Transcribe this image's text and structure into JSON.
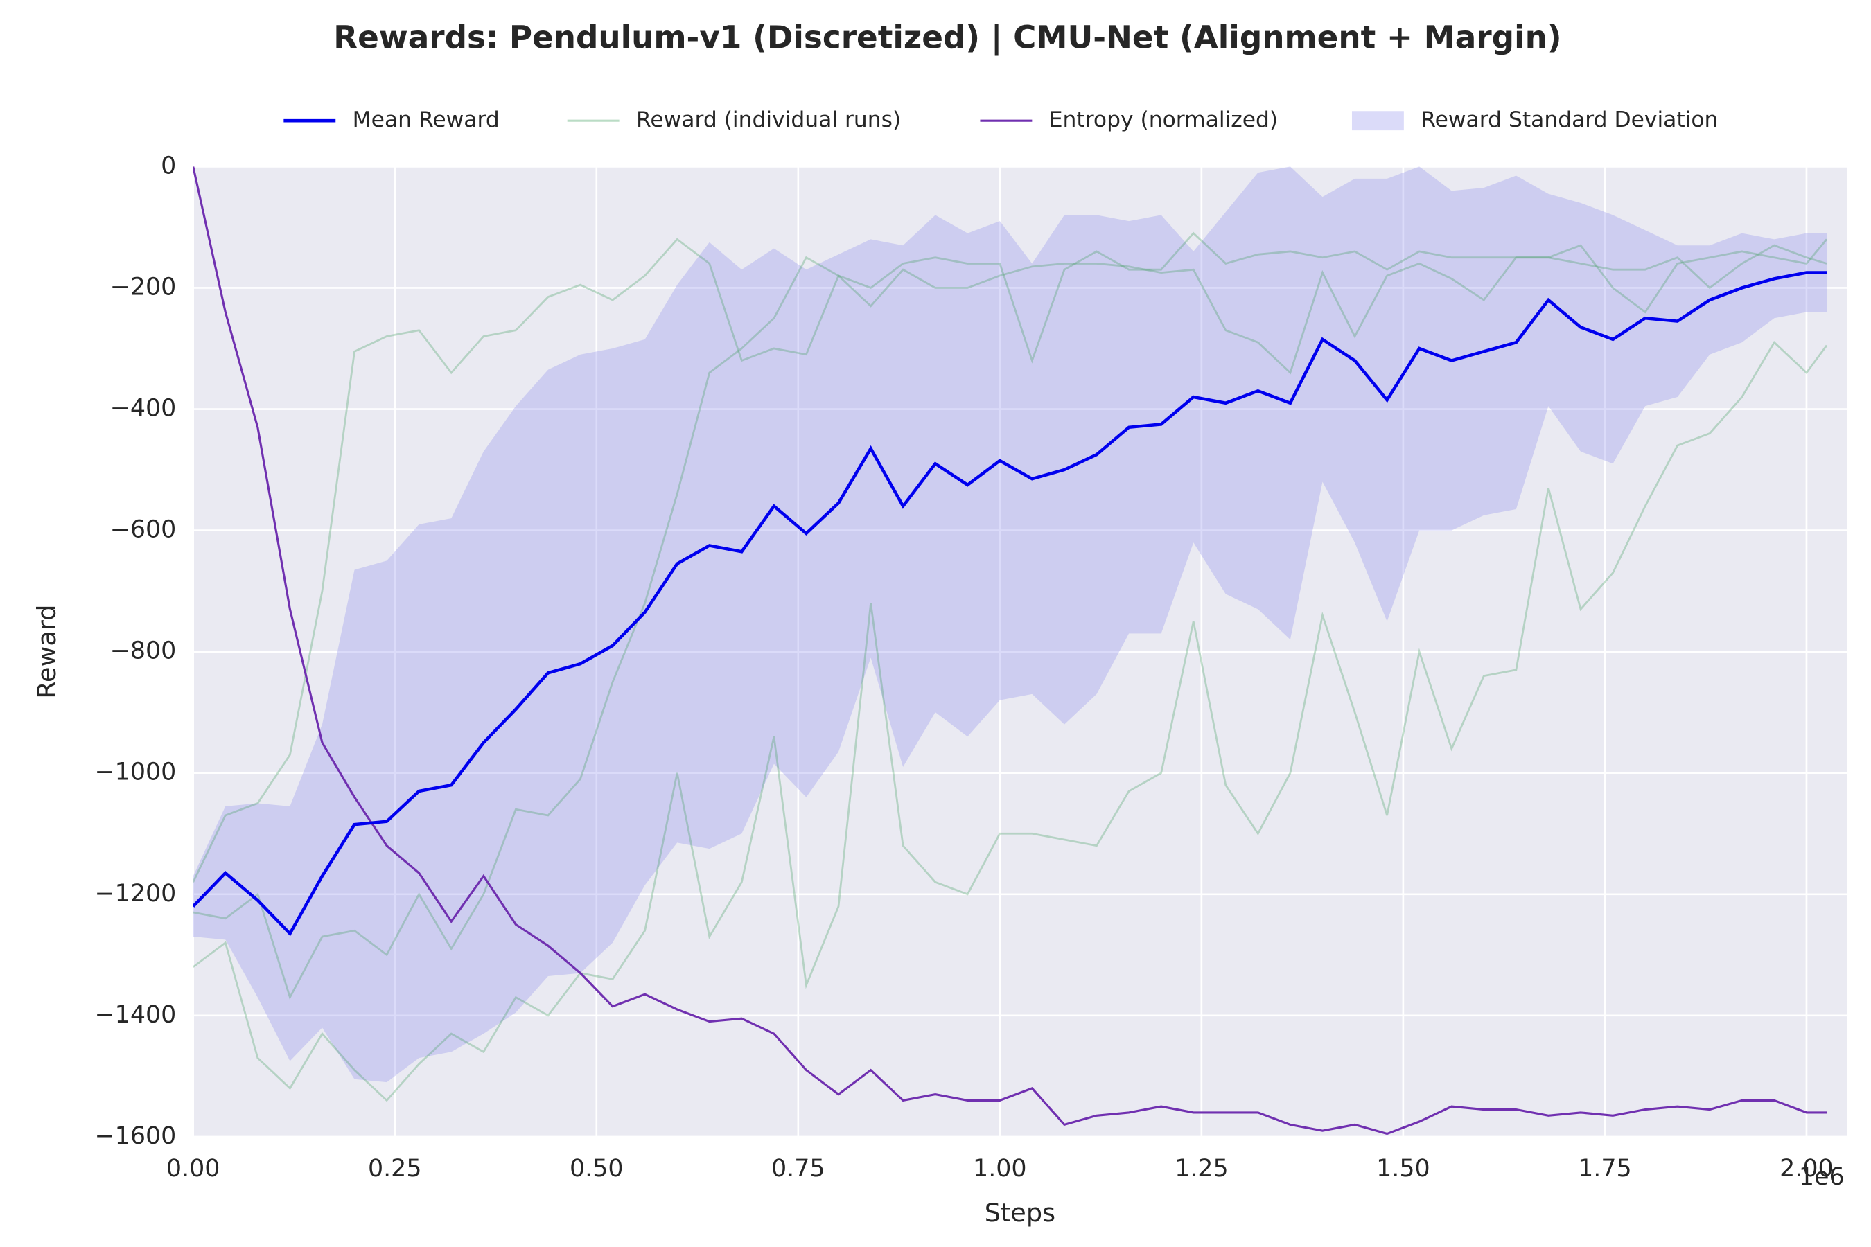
{
  "chart_data": {
    "type": "line",
    "title": "Rewards: Pendulum-v1 (Discretized) | CMU-Net (Alignment + Margin)",
    "xlabel": "Steps",
    "ylabel": "Reward",
    "x_offset_label": "1e6",
    "xlim": [
      0,
      2050000
    ],
    "ylim": [
      -1600,
      0
    ],
    "xticks": [
      {
        "value": 0,
        "label": "0.00"
      },
      {
        "value": 250000,
        "label": "0.25"
      },
      {
        "value": 500000,
        "label": "0.50"
      },
      {
        "value": 750000,
        "label": "0.75"
      },
      {
        "value": 1000000,
        "label": "1.00"
      },
      {
        "value": 1250000,
        "label": "1.25"
      },
      {
        "value": 1500000,
        "label": "1.50"
      },
      {
        "value": 1750000,
        "label": "1.75"
      },
      {
        "value": 2000000,
        "label": "2.00"
      }
    ],
    "yticks": [
      {
        "value": -1600,
        "label": "−1600"
      },
      {
        "value": -1400,
        "label": "−1400"
      },
      {
        "value": -1200,
        "label": "−1200"
      },
      {
        "value": -1000,
        "label": "−1000"
      },
      {
        "value": -800,
        "label": "−800"
      },
      {
        "value": -600,
        "label": "−600"
      },
      {
        "value": -400,
        "label": "−400"
      },
      {
        "value": -200,
        "label": "−200"
      },
      0
    ],
    "grid": true,
    "legend": "top",
    "x": [
      0,
      40000,
      80000,
      120000,
      160000,
      200000,
      240000,
      280000,
      320000,
      360000,
      400000,
      440000,
      480000,
      520000,
      560000,
      600000,
      640000,
      680000,
      720000,
      760000,
      800000,
      840000,
      880000,
      920000,
      960000,
      1000000,
      1040000,
      1080000,
      1120000,
      1160000,
      1200000,
      1240000,
      1280000,
      1320000,
      1360000,
      1400000,
      1440000,
      1480000,
      1520000,
      1560000,
      1600000,
      1640000,
      1680000,
      1720000,
      1760000,
      1800000,
      1840000,
      1880000,
      1920000,
      1960000,
      2000000,
      2025000
    ],
    "series": [
      {
        "name": "Mean Reward",
        "color": "#0000ee",
        "values": [
          -1220,
          -1165,
          -1210,
          -1265,
          -1170,
          -1085,
          -1080,
          -1030,
          -1020,
          -950,
          -895,
          -835,
          -820,
          -790,
          -735,
          -655,
          -625,
          -635,
          -560,
          -605,
          -555,
          -465,
          -560,
          -490,
          -525,
          -485,
          -515,
          -500,
          -475,
          -430,
          -425,
          -380,
          -390,
          -370,
          -390,
          -285,
          -320,
          -385,
          -300,
          -320,
          -305,
          -290,
          -220,
          -265,
          -285,
          -250,
          -255,
          -220,
          -200,
          -185,
          -175,
          -175
        ]
      },
      {
        "name": "Reward (individual runs)",
        "color": "#3a9a5a",
        "runs": [
          [
            -1180,
            -1070,
            -1050,
            -970,
            -700,
            -305,
            -280,
            -270,
            -340,
            -280,
            -270,
            -215,
            -195,
            -220,
            -180,
            -120,
            -160,
            -320,
            -300,
            -310,
            -180,
            -200,
            -160,
            -150,
            -160,
            -160,
            -320,
            -170,
            -140,
            -170,
            -170,
            -110,
            -160,
            -145,
            -140,
            -150,
            -140,
            -170,
            -140,
            -150,
            -150,
            -150,
            -150,
            -130,
            -200,
            -240,
            -160,
            -150,
            -140,
            -150,
            -160,
            -120
          ],
          [
            -1230,
            -1240,
            -1200,
            -1370,
            -1270,
            -1260,
            -1300,
            -1200,
            -1290,
            -1200,
            -1060,
            -1070,
            -1010,
            -850,
            -720,
            -540,
            -340,
            -300,
            -250,
            -150,
            -180,
            -230,
            -170,
            -200,
            -200,
            -180,
            -165,
            -160,
            -160,
            -165,
            -175,
            -170,
            -270,
            -290,
            -340,
            -175,
            -280,
            -180,
            -160,
            -185,
            -220,
            -150,
            -150,
            -160,
            -170,
            -170,
            -150,
            -200,
            -160,
            -130,
            -150,
            -160
          ],
          [
            -1320,
            -1280,
            -1470,
            -1520,
            -1430,
            -1490,
            -1540,
            -1480,
            -1430,
            -1460,
            -1370,
            -1400,
            -1330,
            -1340,
            -1260,
            -1000,
            -1270,
            -1180,
            -940,
            -1350,
            -1220,
            -720,
            -1120,
            -1180,
            -1200,
            -1100,
            -1100,
            -1110,
            -1120,
            -1030,
            -1000,
            -750,
            -1020,
            -1100,
            -1000,
            -740,
            -900,
            -1070,
            -800,
            -960,
            -840,
            -830,
            -530,
            -730,
            -670,
            -560,
            -460,
            -440,
            -380,
            -290,
            -340,
            -295
          ]
        ]
      },
      {
        "name": "Entropy (normalized)",
        "color": "#7030b0",
        "values": [
          0,
          -240,
          -430,
          -730,
          -950,
          -1040,
          -1120,
          -1165,
          -1245,
          -1170,
          -1250,
          -1285,
          -1330,
          -1385,
          -1365,
          -1390,
          -1410,
          -1405,
          -1430,
          -1490,
          -1530,
          -1490,
          -1540,
          -1530,
          -1540,
          -1540,
          -1520,
          -1580,
          -1565,
          -1560,
          -1550,
          -1560,
          -1560,
          -1560,
          -1580,
          -1590,
          -1580,
          -1595,
          -1575,
          -1550,
          -1555,
          -1555,
          -1565,
          -1560,
          -1565,
          -1555,
          -1550,
          -1555,
          -1540,
          -1540,
          -1560,
          -1560
        ]
      },
      {
        "name": "Reward Standard Deviation",
        "color": "#9999ee",
        "values": [
          50,
          110,
          160,
          210,
          250,
          420,
          430,
          440,
          440,
          480,
          500,
          500,
          510,
          490,
          450,
          460,
          500,
          465,
          425,
          435,
          410,
          345,
          430,
          410,
          415,
          395,
          355,
          420,
          395,
          340,
          345,
          240,
          315,
          360,
          390,
          235,
          300,
          365,
          300,
          280,
          270,
          275,
          175,
          205,
          205,
          145,
          125,
          90,
          90,
          65,
          65,
          65
        ]
      }
    ]
  }
}
